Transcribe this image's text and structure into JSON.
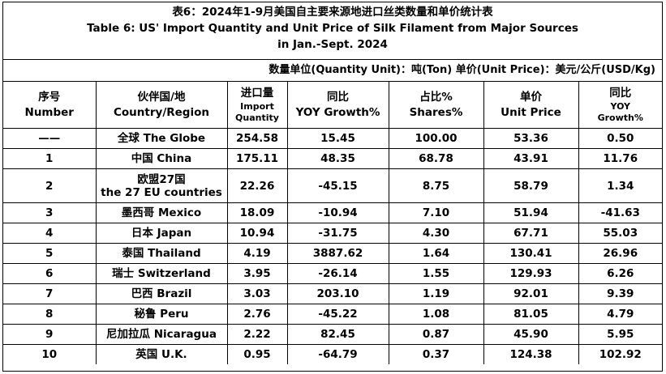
{
  "title": {
    "cn": "表6：2024年1-9月美国自主要来源地进口丝类数量和单价统计表",
    "en_line1": "Table 6: US' Import Quantity and Unit Price of Silk Filament from Major Sources",
    "en_line2": "in Jan.-Sept. 2024"
  },
  "units": "数量单位(Quantity Unit)：吨(Ton)   单价(Unit Price)：美元/公斤(USD/Kg)",
  "headers": {
    "no_cn": "序号",
    "no_en": "Number",
    "country_cn": "伙伴国/地",
    "country_en": "Country/Region",
    "qty_cn": "进口量",
    "qty_en1": "Import",
    "qty_en2": "Quantity",
    "yoy_cn": "同比",
    "yoy_en": "YOY Growth%",
    "share_cn": "占比%",
    "share_en": "Shares%",
    "price_cn": "单价",
    "price_en": "Unit Price",
    "pyoy_cn": "同比",
    "pyoy_en1": "YOY",
    "pyoy_en2": "Growth%"
  },
  "rows": [
    {
      "no": "——",
      "country": "全球 The Globe",
      "qty": "254.58",
      "yoy": "15.45",
      "share": "100.00",
      "price": "53.36",
      "pyoy": "0.50"
    },
    {
      "no": "1",
      "country": "中国 China",
      "qty": "175.11",
      "yoy": "48.35",
      "share": "68.78",
      "price": "43.91",
      "pyoy": "11.76"
    },
    {
      "no": "2",
      "country_line1": "欧盟27国",
      "country_line2": "the 27 EU countries",
      "qty": "22.26",
      "yoy": "-45.15",
      "share": "8.75",
      "price": "58.79",
      "pyoy": "1.34"
    },
    {
      "no": "3",
      "country": "墨西哥 Mexico",
      "qty": "18.09",
      "yoy": "-10.94",
      "share": "7.10",
      "price": "51.94",
      "pyoy": "-41.63"
    },
    {
      "no": "4",
      "country": "日本 Japan",
      "qty": "10.94",
      "yoy": "-31.75",
      "share": "4.30",
      "price": "67.71",
      "pyoy": "55.03"
    },
    {
      "no": "5",
      "country": "泰国 Thailand",
      "qty": "4.19",
      "yoy": "3887.62",
      "share": "1.64",
      "price": "130.41",
      "pyoy": "26.96"
    },
    {
      "no": "6",
      "country": "瑞士 Switzerland",
      "qty": "3.95",
      "yoy": "-26.14",
      "share": "1.55",
      "price": "129.93",
      "pyoy": "6.26"
    },
    {
      "no": "7",
      "country": "巴西 Brazil",
      "qty": "3.03",
      "yoy": "203.10",
      "share": "1.19",
      "price": "92.01",
      "pyoy": "9.39"
    },
    {
      "no": "8",
      "country": "秘鲁 Peru",
      "qty": "2.76",
      "yoy": "-45.22",
      "share": "1.08",
      "price": "81.05",
      "pyoy": "4.79"
    },
    {
      "no": "9",
      "country": "尼加拉瓜 Nicaragua",
      "qty": "2.22",
      "yoy": "82.45",
      "share": "0.87",
      "price": "45.90",
      "pyoy": "5.95"
    },
    {
      "no": "10",
      "country": "英国 U.K.",
      "qty": "0.95",
      "yoy": "-64.79",
      "share": "0.37",
      "price": "124.38",
      "pyoy": "102.92"
    }
  ]
}
